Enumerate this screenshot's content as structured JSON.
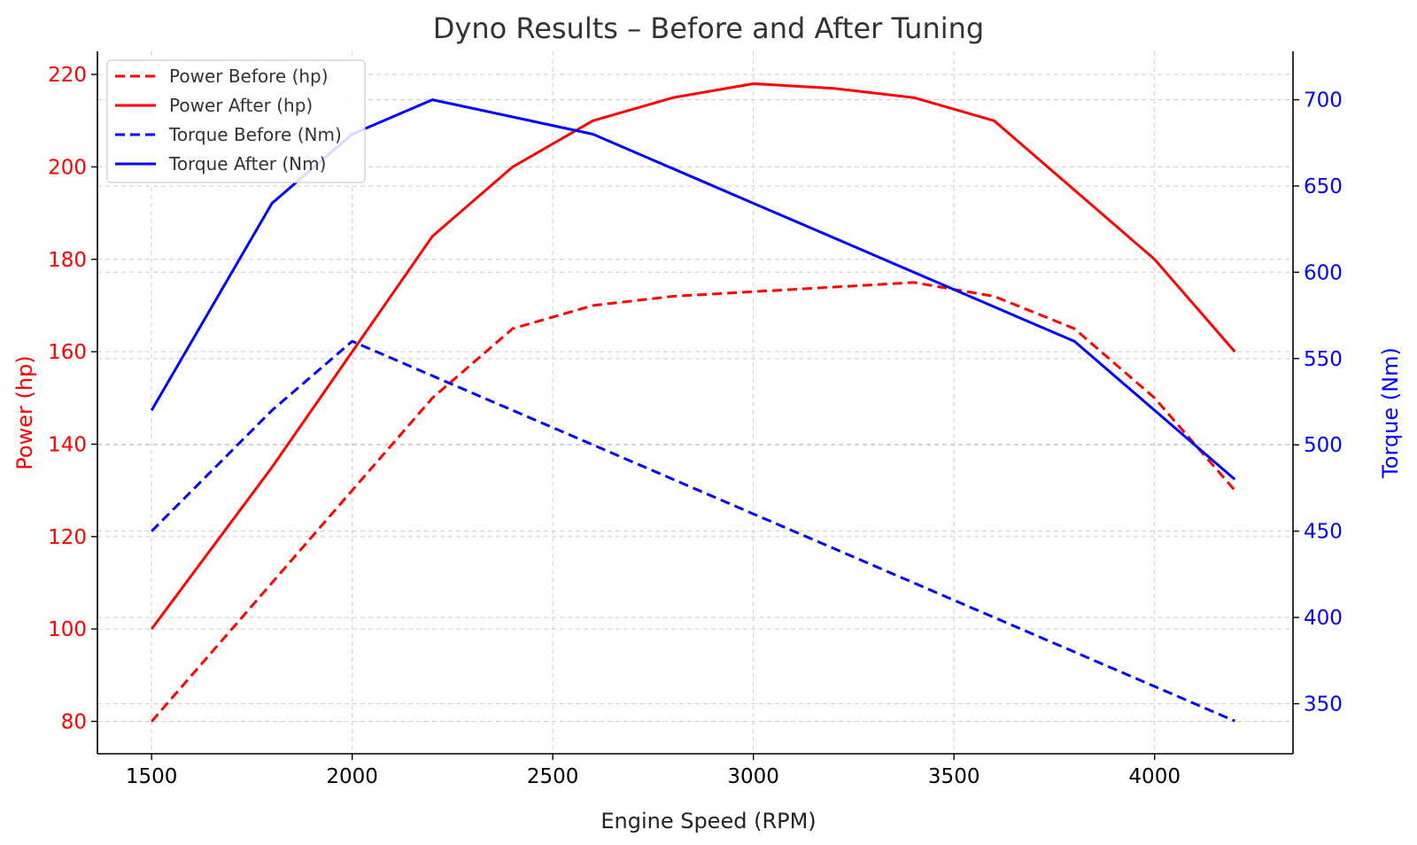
{
  "chart_data": {
    "type": "line",
    "title": "Dyno Results – Before and After Tuning",
    "xlabel": "Engine Speed (RPM)",
    "ylabel_left": "Power (hp)",
    "ylabel_right": "Torque (Nm)",
    "xlim": [
      1365,
      4345
    ],
    "ylim_left": [
      73,
      225
    ],
    "ylim_right": [
      321,
      728
    ],
    "x_ticks": [
      1500,
      2000,
      2500,
      3000,
      3500,
      4000
    ],
    "y_left_ticks": [
      80,
      100,
      120,
      140,
      160,
      180,
      200,
      220
    ],
    "y_right_ticks": [
      350,
      400,
      450,
      500,
      550,
      600,
      650,
      700
    ],
    "grid": true,
    "legend_position": "top-left",
    "colors": {
      "power": "#ff0000",
      "torque": "#0000ff",
      "title": "#333333"
    },
    "x": [
      1500,
      1800,
      2000,
      2200,
      2400,
      2600,
      2800,
      3000,
      3200,
      3400,
      3600,
      3800,
      4000,
      4200
    ],
    "series": [
      {
        "name": "Power Before (hp)",
        "axis": "left",
        "color": "#ff0000",
        "dash": true,
        "values": [
          80,
          110,
          130,
          150,
          165,
          170,
          172,
          173,
          174,
          175,
          172,
          165,
          150,
          130
        ]
      },
      {
        "name": "Power After (hp)",
        "axis": "left",
        "color": "#ff0000",
        "dash": false,
        "values": [
          100,
          135,
          160,
          185,
          200,
          210,
          215,
          218,
          217,
          215,
          210,
          195,
          180,
          160
        ]
      },
      {
        "name": "Torque Before (Nm)",
        "axis": "right",
        "color": "#0000ff",
        "dash": true,
        "values": [
          450,
          520,
          560,
          540,
          520,
          500,
          480,
          460,
          440,
          420,
          400,
          380,
          360,
          340
        ]
      },
      {
        "name": "Torque After (Nm)",
        "axis": "right",
        "color": "#0000ff",
        "dash": false,
        "values": [
          520,
          640,
          680,
          700,
          690,
          680,
          660,
          640,
          620,
          600,
          580,
          560,
          520,
          480
        ]
      }
    ]
  }
}
